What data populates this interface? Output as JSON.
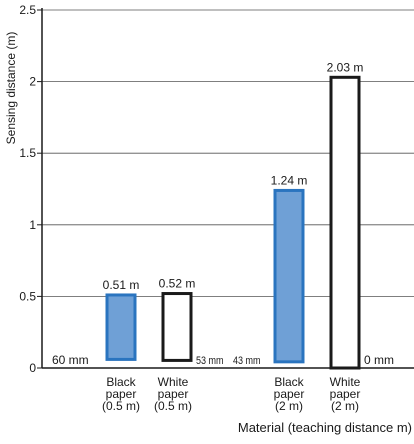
{
  "chart_data": {
    "type": "bar",
    "ylabel": "Sensing distance (m)",
    "xlabel": "Material (teaching distance m)",
    "ylim": [
      0,
      2.5
    ],
    "yticks": [
      0,
      0.5,
      1,
      1.5,
      2,
      2.5
    ],
    "ytick_labels": [
      "0",
      "0.5",
      "1",
      "1.5",
      "2",
      "2.5"
    ],
    "grid": true,
    "bars": [
      {
        "category_lines": [
          "Black",
          "paper",
          "(0.5 m)"
        ],
        "value": 0.51,
        "label": "0.51 m",
        "min_label": "60 mm",
        "base": 0.06,
        "fill": "#6fa0d6",
        "stroke": "#2a74bf"
      },
      {
        "category_lines": [
          "White",
          "paper",
          "(0.5 m)"
        ],
        "value": 0.52,
        "label": "0.52 m",
        "min_label": "53 mm",
        "base": 0.053,
        "fill": "#ffffff",
        "stroke": "#1a1a1a"
      },
      {
        "category_lines": [
          "Black",
          "paper",
          "(2 m)"
        ],
        "value": 1.24,
        "label": "1.24 m",
        "min_label": "43 mm",
        "base": 0.043,
        "fill": "#6fa0d6",
        "stroke": "#2a74bf"
      },
      {
        "category_lines": [
          "White",
          "paper",
          "(2 m)"
        ],
        "value": 2.03,
        "label": "2.03 m",
        "min_label": "0 mm",
        "base": 0,
        "fill": "#ffffff",
        "stroke": "#1a1a1a"
      }
    ]
  }
}
